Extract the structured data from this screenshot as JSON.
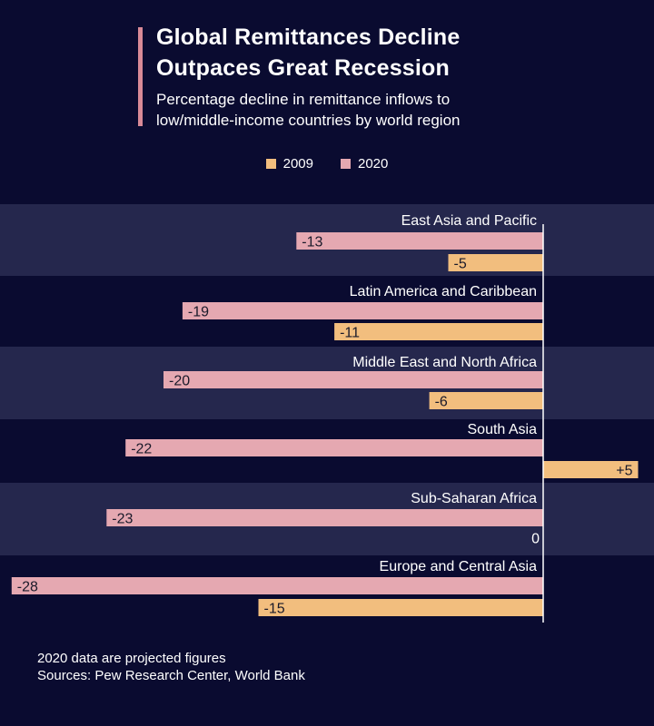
{
  "title": "Global Remittances Decline Outpaces Great Recession",
  "title_line1": "Global Remittances Decline",
  "title_line2": "Outpaces Great Recession",
  "subtitle_line1": "Percentage decline in remittance inflows to",
  "subtitle_line2": "low/middle-income countries by world region",
  "legend": [
    {
      "label": "2009",
      "color": "#f2be7e"
    },
    {
      "label": "2020",
      "color": "#e5a8b1"
    }
  ],
  "footnote_line1": "2020 data are projected figures",
  "footnote_line2": "Sources: Pew Research Center, World Bank",
  "colors": {
    "background": "#0a0b30",
    "band": "#25274d",
    "series_2020": "#e5a8b1",
    "series_2009": "#f2be7e",
    "accent": "#d98a97"
  },
  "chart_data": {
    "type": "bar",
    "orientation": "horizontal",
    "title": "Global Remittances Decline Outpaces Great Recession",
    "subtitle": "Percentage decline in remittance inflows to low/middle-income countries by world region",
    "categories": [
      "East Asia and Pacific",
      "Latin America and Caribbean",
      "Middle East and North Africa",
      "South Asia",
      "Sub-Saharan Africa",
      "Europe and Central Asia"
    ],
    "series": [
      {
        "name": "2020",
        "values": [
          -13,
          -19,
          -20,
          -22,
          -23,
          -28
        ],
        "labels": [
          "-13",
          "-19",
          "-20",
          "-22",
          "-23",
          "-28"
        ]
      },
      {
        "name": "2009",
        "values": [
          -5,
          -11,
          -6,
          5,
          0,
          -15
        ],
        "labels": [
          "-5",
          "-11",
          "-6",
          "+5",
          "0",
          "-15"
        ]
      }
    ],
    "xlim": [
      -28,
      5
    ],
    "legend_position": "top-center"
  }
}
